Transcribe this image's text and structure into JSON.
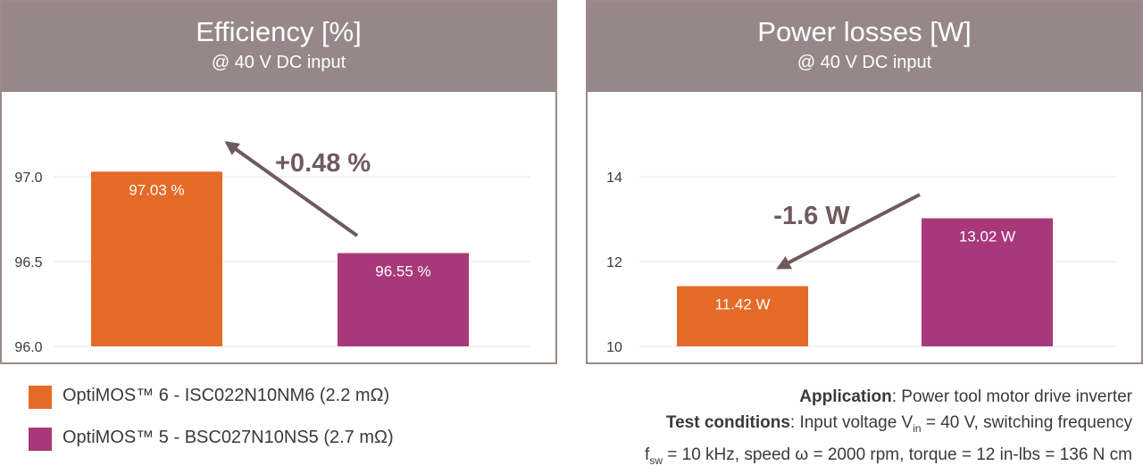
{
  "colors": {
    "orange": "#e56a27",
    "purple": "#a8387a",
    "header": "#96888a",
    "arrow": "#6f5a5e",
    "grid": "#e6e6e6"
  },
  "chart_data": [
    {
      "type": "bar",
      "title": "Efficiency [%]",
      "subtitle": "@ 40 V DC input",
      "categories": [
        "OptiMOS™ 6 - ISC022N10NM6 (2.2 mΩ)",
        "OptiMOS™ 5 - BSC027N10NS5 (2.7 mΩ)"
      ],
      "values": [
        97.03,
        96.55
      ],
      "data_labels": [
        "97.03 %",
        "96.55 %"
      ],
      "ylim": [
        96.0,
        97.2
      ],
      "yticks": [
        96.0,
        96.5,
        97.0
      ],
      "ytick_labels": [
        "96.0",
        "96.5",
        "97.0"
      ],
      "annotation": "+0.48 %",
      "grid": true
    },
    {
      "type": "bar",
      "title": "Power losses [W]",
      "subtitle": "@ 40 V DC input",
      "categories": [
        "OptiMOS™ 6 - ISC022N10NM6 (2.2 mΩ)",
        "OptiMOS™ 5 - BSC027N10NS5 (2.7 mΩ)"
      ],
      "values": [
        11.42,
        13.02
      ],
      "data_labels": [
        "11.42 W",
        "13.02 W"
      ],
      "ylim": [
        10,
        14.2
      ],
      "yticks": [
        10,
        12,
        14
      ],
      "ytick_labels": [
        "10",
        "12",
        "14"
      ],
      "annotation": "-1.6 W",
      "grid": true
    }
  ],
  "legend": [
    {
      "label": "OptiMOS™ 6 - ISC022N10NM6 (2.2 mΩ)",
      "color": "#e56a27"
    },
    {
      "label": "OptiMOS™ 5 - BSC027N10NS5 (2.7 mΩ)",
      "color": "#a8387a"
    }
  ],
  "notes": {
    "application_label": "Application",
    "application_text": ": Power tool motor drive inverter",
    "test_label": "Test conditions",
    "test_text_1": ": Input voltage V",
    "vin_sub": "in",
    "test_text_2": " = 40 V, switching frequency",
    "fsw_f": "f",
    "fsw_sub": "sw",
    "test_text_3": " = 10 kHz,  speed ω = 2000 rpm, torque = 12 in-lbs = 136 N cm"
  }
}
